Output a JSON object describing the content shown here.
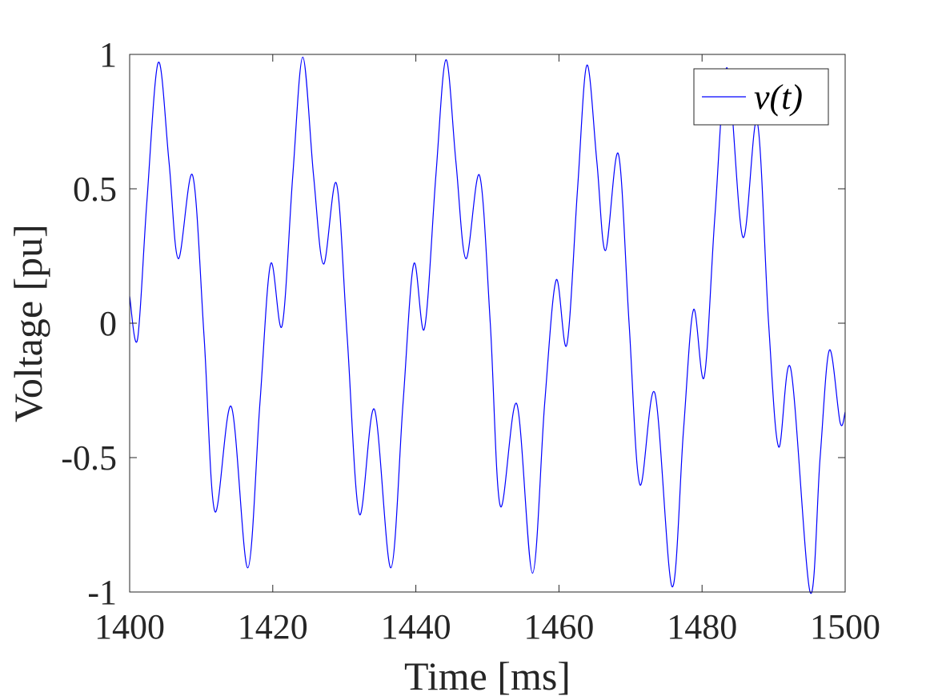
{
  "chart_data": {
    "type": "line",
    "title": "",
    "xlabel": "Time [ms]",
    "ylabel": "Voltage [pu]",
    "xlim": [
      1400,
      1500
    ],
    "ylim": [
      -1,
      1
    ],
    "xticks": [
      1400,
      1420,
      1440,
      1460,
      1480,
      1500
    ],
    "yticks": [
      -1,
      -0.5,
      0,
      0.5,
      1
    ],
    "xtick_labels": [
      "1400",
      "1420",
      "1440",
      "1460",
      "1480",
      "1500"
    ],
    "ytick_labels": [
      "-1",
      "-0.5",
      "0",
      "0.5",
      "1"
    ],
    "grid": false,
    "legend": {
      "placement": "top-right",
      "entries": [
        "v(t)"
      ]
    },
    "series": [
      {
        "name": "v(t)",
        "color": "#0000ff",
        "points": [
          [
            1400.0,
            0.1
          ],
          [
            1401.1,
            -0.06
          ],
          [
            1402.4,
            0.45
          ],
          [
            1404.0,
            0.97
          ],
          [
            1405.5,
            0.6
          ],
          [
            1406.8,
            0.24
          ],
          [
            1408.8,
            0.55
          ],
          [
            1410.4,
            -0.05
          ],
          [
            1411.9,
            -0.7
          ],
          [
            1414.2,
            -0.31
          ],
          [
            1416.5,
            -0.91
          ],
          [
            1418.2,
            -0.3
          ],
          [
            1419.7,
            0.22
          ],
          [
            1421.3,
            -0.01
          ],
          [
            1422.8,
            0.55
          ],
          [
            1424.2,
            0.99
          ],
          [
            1425.7,
            0.55
          ],
          [
            1427.1,
            0.22
          ],
          [
            1428.9,
            0.52
          ],
          [
            1430.4,
            -0.05
          ],
          [
            1432.1,
            -0.71
          ],
          [
            1434.2,
            -0.32
          ],
          [
            1436.5,
            -0.91
          ],
          [
            1438.2,
            -0.3
          ],
          [
            1439.7,
            0.22
          ],
          [
            1441.2,
            -0.02
          ],
          [
            1442.8,
            0.55
          ],
          [
            1444.2,
            0.98
          ],
          [
            1445.6,
            0.6
          ],
          [
            1447.0,
            0.24
          ],
          [
            1448.9,
            0.55
          ],
          [
            1450.4,
            0.0
          ],
          [
            1451.8,
            -0.68
          ],
          [
            1454.1,
            -0.3
          ],
          [
            1456.3,
            -0.93
          ],
          [
            1458.0,
            -0.3
          ],
          [
            1459.6,
            0.16
          ],
          [
            1461.1,
            -0.08
          ],
          [
            1462.6,
            0.5
          ],
          [
            1463.9,
            0.96
          ],
          [
            1465.3,
            0.6
          ],
          [
            1466.5,
            0.27
          ],
          [
            1468.3,
            0.63
          ],
          [
            1469.8,
            0.0
          ],
          [
            1471.3,
            -0.6
          ],
          [
            1473.4,
            -0.26
          ],
          [
            1475.8,
            -0.98
          ],
          [
            1477.4,
            -0.4
          ],
          [
            1478.8,
            0.05
          ],
          [
            1480.3,
            -0.2
          ],
          [
            1481.8,
            0.4
          ],
          [
            1483.5,
            0.95
          ],
          [
            1485.7,
            0.32
          ],
          [
            1487.7,
            0.75
          ],
          [
            1489.3,
            0.0
          ],
          [
            1490.7,
            -0.46
          ],
          [
            1492.4,
            -0.17
          ],
          [
            1495.1,
            -1.0
          ],
          [
            1496.5,
            -0.5
          ],
          [
            1497.8,
            -0.1
          ],
          [
            1499.3,
            -0.37
          ],
          [
            1500.0,
            -0.33
          ]
        ]
      }
    ]
  }
}
